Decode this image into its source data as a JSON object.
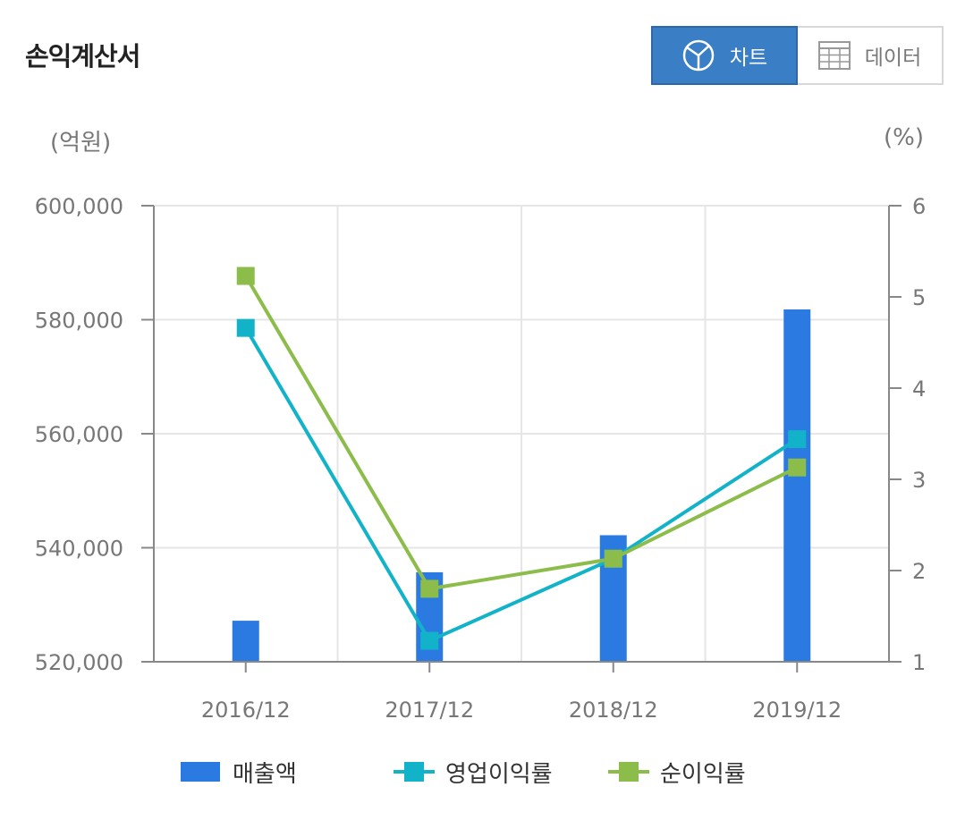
{
  "header": {
    "title": "손익계산서"
  },
  "view_toggle": {
    "chart_label": "차트",
    "data_label": "데이터",
    "chart_icon": "pie-chart-icon",
    "data_icon": "table-grid-icon",
    "active": "chart"
  },
  "colors": {
    "bar": "#2a7ae2",
    "operating": "#12b3c9",
    "net": "#8cbc4a",
    "axis": "#888888",
    "grid": "#e6e6e6",
    "active_button": "#3a7ec6"
  },
  "chart_data": {
    "type": "bar",
    "categories": [
      "2016/12",
      "2017/12",
      "2018/12",
      "2019/12"
    ],
    "y_left": {
      "unit_label": "(억원)",
      "range": [
        520000,
        600000
      ],
      "ticks": [
        600000,
        580000,
        560000,
        540000,
        520000
      ],
      "tick_labels": [
        "600,000",
        "580,000",
        "560,000",
        "540,000",
        "520,000"
      ]
    },
    "y_right": {
      "unit_label": "(%)",
      "range": [
        1,
        6
      ],
      "ticks": [
        6,
        5,
        4,
        3,
        2,
        1
      ],
      "tick_labels": [
        "6",
        "5",
        "4",
        "3",
        "2",
        "1"
      ]
    },
    "series": [
      {
        "name": "매출액",
        "type": "bar",
        "axis": "left",
        "values": [
          527200,
          535700,
          542200,
          581800
        ]
      },
      {
        "name": "영업이익률",
        "type": "line",
        "axis": "right",
        "values": [
          4.66,
          1.23,
          2.13,
          3.44
        ]
      },
      {
        "name": "순이익률",
        "type": "line",
        "axis": "right",
        "values": [
          5.23,
          1.8,
          2.13,
          3.13
        ]
      }
    ],
    "grid": true,
    "legend": "bottom"
  }
}
